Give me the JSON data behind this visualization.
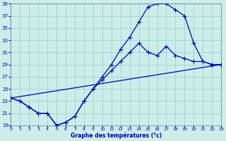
{
  "xlabel": "Graphe des températures (°c)",
  "bg_color": "#cceee8",
  "grid_color": "#99cccc",
  "line_color": "#0000bb",
  "xlim": [
    0,
    23
  ],
  "ylim": [
    19,
    39
  ],
  "yticks": [
    19,
    21,
    23,
    25,
    27,
    29,
    31,
    33,
    35,
    37,
    39
  ],
  "xticks": [
    0,
    1,
    2,
    3,
    4,
    5,
    6,
    7,
    8,
    9,
    10,
    11,
    12,
    13,
    14,
    15,
    16,
    17,
    18,
    19,
    20,
    21,
    22,
    23
  ],
  "curve1_x": [
    0,
    1,
    2,
    3,
    4,
    5,
    6,
    7,
    8,
    9,
    10,
    11,
    12,
    13,
    14,
    15,
    16,
    17,
    18,
    19,
    20,
    21,
    22,
    23
  ],
  "curve1_y": [
    23.5,
    23.0,
    22.0,
    21.0,
    21.0,
    19.0,
    19.5,
    20.5,
    23.0,
    25.0,
    27.0,
    29.0,
    31.5,
    33.5,
    36.0,
    38.5,
    39.0,
    39.0,
    38.0,
    37.0,
    32.5,
    29.5,
    29.0,
    29.0
  ],
  "curve2_x": [
    0,
    1,
    2,
    3,
    4,
    5,
    6,
    7,
    8,
    9,
    10,
    11,
    12,
    13,
    14,
    15,
    16,
    17,
    18,
    19,
    20,
    21,
    22,
    23
  ],
  "curve2_y": [
    23.5,
    23.0,
    22.0,
    21.0,
    21.0,
    19.0,
    19.5,
    20.5,
    23.0,
    25.0,
    26.5,
    28.0,
    29.5,
    31.0,
    32.5,
    31.0,
    30.5,
    32.0,
    30.5,
    30.0,
    29.5,
    29.5,
    29.0,
    29.0
  ],
  "line_x": [
    0,
    23
  ],
  "line_y": [
    23.5,
    29.0
  ]
}
